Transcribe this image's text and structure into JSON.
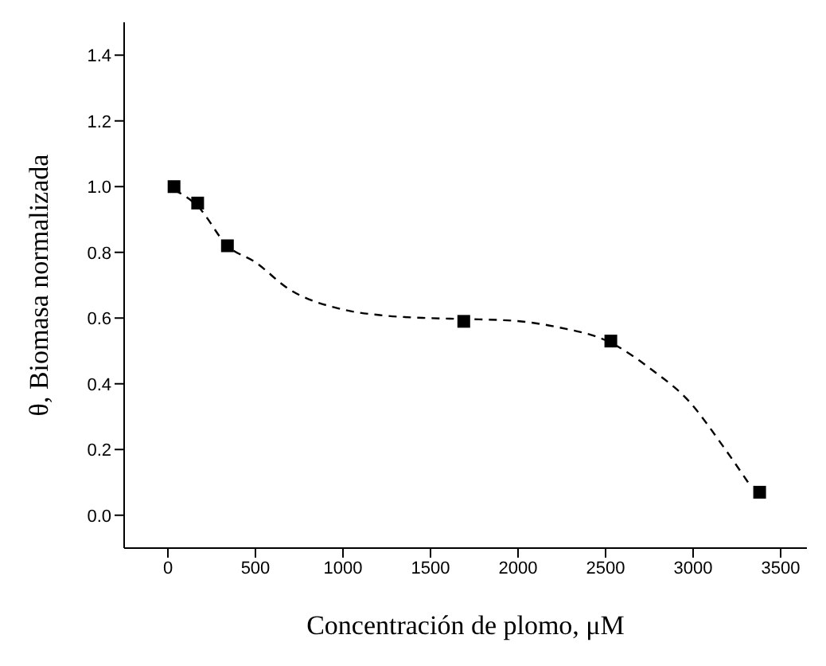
{
  "chart_data": {
    "type": "scatter",
    "xlabel": "Concentración de plomo, μM",
    "ylabel": "θ, Biomasa normalizada",
    "xlim": [
      -250,
      3650
    ],
    "xticks": [
      0,
      500,
      1000,
      1500,
      2000,
      2500,
      3000,
      3500
    ],
    "ylim": [
      -0.1,
      1.5
    ],
    "yticks": [
      {
        "value": 0,
        "label": "0.0"
      },
      0.2,
      0.4,
      0.6,
      0.8,
      {
        "value": 1,
        "label": "1.0"
      },
      1.2,
      1.4
    ],
    "grid": false,
    "legend": false,
    "marker": "square",
    "series": [
      {
        "color": "#000000",
        "x": [
          35,
          170,
          340,
          1690,
          2530,
          3380
        ],
        "values": [
          1.0,
          0.95,
          0.82,
          0.59,
          0.53,
          0.07
        ]
      },
      {
        "type": "line",
        "color": "#000000",
        "line_style": "dashed",
        "marker": "none",
        "x": [
          37,
          171,
          340,
          500,
          686,
          1000,
          1229,
          1486,
          1700,
          1971,
          2229,
          2511,
          2771,
          2971,
          3171,
          3314
        ],
        "values": [
          0.99,
          0.94,
          0.82,
          0.77,
          0.69,
          0.626,
          0.608,
          0.6,
          0.597,
          0.592,
          0.572,
          0.53,
          0.44,
          0.35,
          0.21,
          0.1
        ]
      }
    ]
  }
}
